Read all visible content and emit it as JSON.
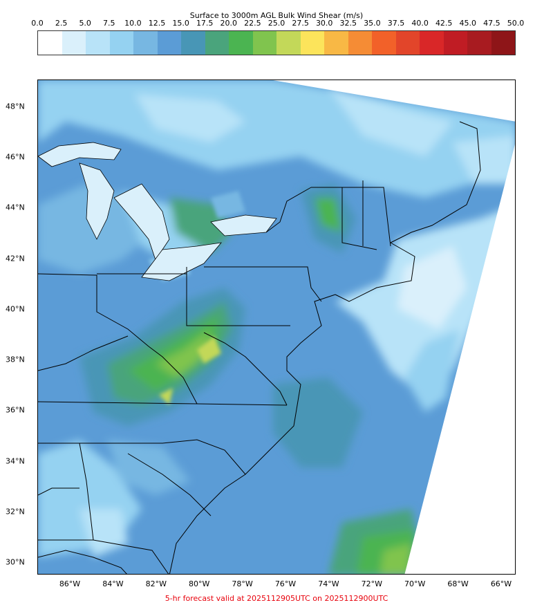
{
  "colorbar": {
    "title": "Surface to 3000m AGL Bulk Wind Shear (m/s)",
    "ticks": [
      "0.0",
      "2.5",
      "5.0",
      "7.5",
      "10.0",
      "12.5",
      "15.0",
      "17.5",
      "20.0",
      "22.5",
      "25.0",
      "27.5",
      "30.0",
      "32.5",
      "35.0",
      "37.5",
      "40.0",
      "42.5",
      "45.0",
      "47.5",
      "50.0"
    ],
    "colors": [
      "#ffffff",
      "#daf0fb",
      "#b8e3f8",
      "#95d2f1",
      "#77b7e2",
      "#5b9cd6",
      "#4896b6",
      "#4aa47c",
      "#4bb451",
      "#80c44e",
      "#c3d859",
      "#fce45b",
      "#f8b845",
      "#f58c35",
      "#f26129",
      "#e2452a",
      "#d92728",
      "#c01c24",
      "#a81b20",
      "#8e1518"
    ]
  },
  "map": {
    "latitude_labels": [
      "48°N",
      "46°N",
      "44°N",
      "42°N",
      "40°N",
      "38°N",
      "36°N",
      "34°N",
      "32°N",
      "30°N"
    ],
    "longitude_labels": [
      "86°W",
      "84°W",
      "82°W",
      "80°W",
      "78°W",
      "76°W",
      "74°W",
      "72°W",
      "70°W",
      "68°W",
      "66°W"
    ],
    "water_color": "#ffffff",
    "border_color": "#000000"
  },
  "footer": "5-hr forecast valid at 2025112905UTC on 2025112900UTC"
}
